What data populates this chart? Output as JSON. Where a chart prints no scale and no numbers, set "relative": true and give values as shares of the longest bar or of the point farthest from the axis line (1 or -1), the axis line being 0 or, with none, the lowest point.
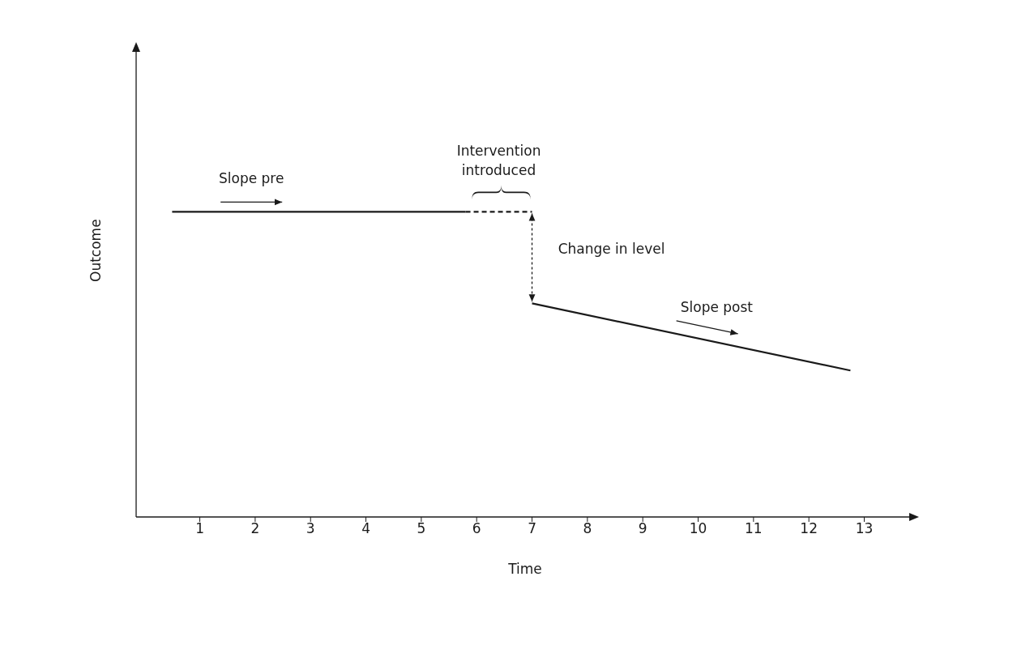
{
  "chart_data": {
    "type": "line",
    "relative": true,
    "xlabel": "Time",
    "ylabel": "Outcome",
    "xlim": [
      -0.15,
      13.9
    ],
    "xticks": [
      1,
      2,
      3,
      4,
      5,
      6,
      7,
      8,
      9,
      10,
      11,
      12,
      13
    ],
    "marker": "none",
    "series": [
      {
        "x": [
          0.5,
          5.8
        ],
        "values": [
          1,
          1
        ],
        "color": "#1a1a1a",
        "line_style": "solid"
      },
      {
        "x": [
          5.8,
          7
        ],
        "values": [
          1,
          1
        ],
        "color": "#1a1a1a",
        "line_style": "dashed"
      },
      {
        "x": [
          7,
          12.75
        ],
        "values": [
          0.7,
          0.48
        ],
        "color": "#1a1a1a",
        "line_style": "solid"
      }
    ],
    "annotations": [
      "Slope pre",
      "Intervention introduced",
      "Change in level",
      "Slope post"
    ]
  }
}
